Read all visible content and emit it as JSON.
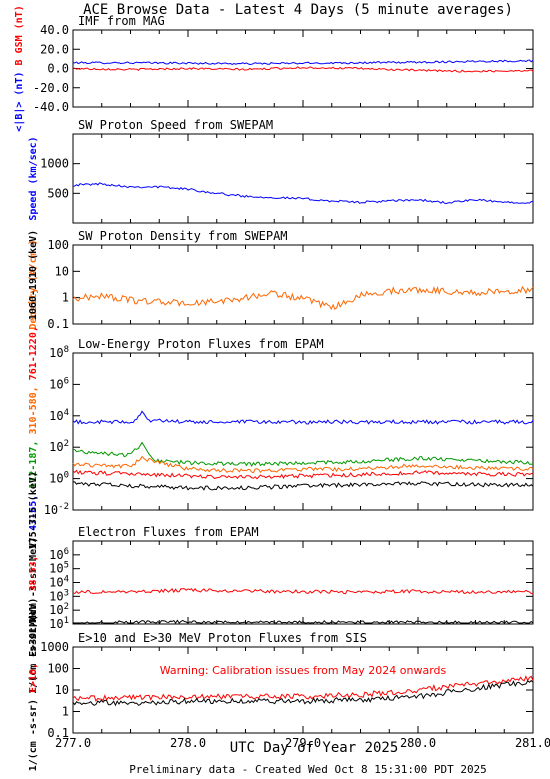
{
  "page": {
    "title": "ACE Browse Data - Latest 4 Days (5 minute averages)",
    "x_axis_label": "UTC Day of Year 2025",
    "footer": "Preliminary data - Created Wed Oct  8 15:31:00 PDT 2025",
    "x_ticks": [
      "277.0",
      "278.0",
      "279.0",
      "280.0",
      "281.0"
    ]
  },
  "colors": {
    "blue": "#0000ff",
    "red": "#ff0000",
    "orange": "#ff6600",
    "green": "#009900",
    "black": "#000000"
  },
  "chart_data": [
    {
      "type": "line",
      "title": "IMF from MAG",
      "ylabel_parts": [
        {
          "text": "<|B|> (nT)",
          "color": "#0000ff"
        },
        {
          "text": "B  GSM (nT)",
          "color": "#ff0000"
        }
      ],
      "ylabel_sub": "z",
      "xlim": [
        277.0,
        281.0
      ],
      "ylim": [
        -40,
        40
      ],
      "yscale": "linear",
      "yticks": [
        "40.0",
        "20.0",
        "0.0",
        "-20.0",
        "-40.0"
      ],
      "series": [
        {
          "name": "<|B|>",
          "color": "#0000ff",
          "x": [
            277.0,
            277.5,
            278.0,
            278.5,
            279.0,
            279.5,
            280.0,
            280.5,
            281.0
          ],
          "y": [
            6,
            6,
            5.5,
            5,
            5.5,
            6,
            6.5,
            7.5,
            8
          ]
        },
        {
          "name": "Bz GSM",
          "color": "#ff0000",
          "x": [
            277.0,
            277.5,
            278.0,
            278.5,
            279.0,
            279.5,
            280.0,
            280.5,
            281.0
          ],
          "y": [
            0,
            -1,
            0,
            -1,
            1,
            0,
            -2,
            -3,
            -2
          ]
        }
      ]
    },
    {
      "type": "line",
      "title": "SW Proton Speed from SWEPAM",
      "ylabel_parts": [
        {
          "text": "Speed (km/sec)",
          "color": "#0000ff"
        }
      ],
      "xlim": [
        277.0,
        281.0
      ],
      "ylim": [
        0,
        1500
      ],
      "yscale": "linear",
      "yticks": [
        "1000",
        "500"
      ],
      "series": [
        {
          "name": "Speed",
          "color": "#0000ff",
          "x": [
            277.0,
            277.25,
            277.5,
            277.75,
            278.0,
            278.25,
            278.5,
            278.75,
            279.0,
            279.25,
            279.5,
            279.75,
            280.0,
            280.25,
            280.5,
            280.75,
            281.0
          ],
          "y": [
            640,
            660,
            610,
            610,
            570,
            500,
            450,
            430,
            410,
            370,
            350,
            370,
            390,
            340,
            390,
            350,
            350
          ]
        }
      ]
    },
    {
      "type": "line",
      "title": "SW Proton Density from SWEPAM",
      "ylabel_parts": [
        {
          "text": "Density (#/cm )",
          "color": "#ff6600"
        }
      ],
      "ylabel_sup": "3",
      "xlim": [
        277.0,
        281.0
      ],
      "ylim": [
        0.1,
        100
      ],
      "yscale": "log",
      "yticks": [
        "100",
        "10",
        "1",
        "0.1"
      ],
      "series": [
        {
          "name": "Density",
          "color": "#ff6600",
          "x": [
            277.0,
            277.25,
            277.5,
            277.75,
            278.0,
            278.25,
            278.5,
            278.75,
            279.0,
            279.25,
            279.5,
            279.75,
            280.0,
            280.25,
            280.5,
            280.75,
            281.0
          ],
          "y": [
            0.9,
            1.2,
            0.8,
            0.7,
            0.6,
            0.7,
            1.0,
            1.5,
            0.9,
            0.4,
            1.2,
            1.8,
            2.0,
            1.8,
            1.5,
            1.8,
            2.0
          ]
        }
      ]
    },
    {
      "type": "line",
      "title": "Low-Energy Proton Fluxes from EPAM",
      "ylabel_parts": [
        {
          "text": "1/(cm -s-sr-MeV)",
          "color": "#000000"
        },
        {
          "text": "47-65,",
          "color": "#0000ff"
        },
        {
          "text": "112-187,",
          "color": "#009900"
        },
        {
          "text": "310-580,",
          "color": "#ff6600"
        },
        {
          "text": "761-1220,",
          "color": "#ff0000"
        },
        {
          "text": "1060-1910 (keV)",
          "color": "#000000"
        }
      ],
      "ylabel_sup": "2",
      "xlim": [
        277.0,
        281.0
      ],
      "ylim": [
        0.01,
        100000000
      ],
      "yscale": "log",
      "yticks": [
        "10^8",
        "10^6",
        "10^4",
        "10^2",
        "10^0",
        "10^-2"
      ],
      "series": [
        {
          "name": "47-65 keV",
          "color": "#0000ff",
          "x": [
            277.0,
            277.5,
            277.55,
            277.6,
            277.65,
            278.0,
            279.0,
            280.0,
            281.0
          ],
          "y": [
            4000,
            4000,
            5000,
            25000,
            5000,
            4000,
            4000,
            4000,
            4000
          ]
        },
        {
          "name": "112-187 keV",
          "color": "#009900",
          "x": [
            277.0,
            277.3,
            277.5,
            277.6,
            277.7,
            278.0,
            278.5,
            279.0,
            279.5,
            280.0,
            280.5,
            281.0
          ],
          "y": [
            60,
            40,
            30,
            200,
            15,
            10,
            8,
            10,
            12,
            20,
            15,
            10
          ]
        },
        {
          "name": "310-580 keV",
          "color": "#ff6600",
          "x": [
            277.0,
            277.5,
            277.6,
            278.0,
            278.5,
            279.0,
            279.5,
            280.0,
            280.5,
            281.0
          ],
          "y": [
            8,
            6,
            20,
            4,
            3,
            4,
            4,
            7,
            5,
            4
          ]
        },
        {
          "name": "761-1220 keV",
          "color": "#ff0000",
          "x": [
            277.0,
            277.5,
            278.0,
            278.5,
            279.0,
            279.5,
            280.0,
            280.5,
            281.0
          ],
          "y": [
            2.5,
            2,
            1.5,
            1.2,
            1.5,
            1.8,
            2.5,
            2,
            1.8
          ]
        },
        {
          "name": "1060-1910 keV",
          "color": "#000000",
          "x": [
            277.0,
            277.5,
            278.0,
            278.5,
            279.0,
            279.5,
            280.0,
            280.5,
            281.0
          ],
          "y": [
            0.5,
            0.35,
            0.25,
            0.25,
            0.35,
            0.4,
            0.5,
            0.4,
            0.4
          ]
        }
      ]
    },
    {
      "type": "line",
      "title": "Electron Fluxes from EPAM",
      "ylabel_parts": [
        {
          "text": "1/(cm -s-sr-MeV)",
          "color": "#000000"
        },
        {
          "text": "38-53,",
          "color": "#ff0000"
        },
        {
          "text": "175-315 (keV)",
          "color": "#000000"
        }
      ],
      "ylabel_sup": "2",
      "xlim": [
        277.0,
        281.0
      ],
      "ylim": [
        10,
        10000000
      ],
      "yscale": "log",
      "yticks": [
        "10^6",
        "10^5",
        "10^4",
        "10^3",
        "10^2",
        "10^1"
      ],
      "series": [
        {
          "name": "38-53 keV",
          "color": "#ff0000",
          "x": [
            277.0,
            277.5,
            278.0,
            278.5,
            279.0,
            279.5,
            280.0,
            280.5,
            281.0
          ],
          "y": [
            2000,
            2200,
            2800,
            2400,
            2200,
            2000,
            2300,
            2100,
            2000
          ]
        },
        {
          "name": "175-315 keV",
          "color": "#000000",
          "x": [
            277.0,
            277.5,
            278.0,
            278.5,
            279.0,
            279.5,
            280.0,
            280.5,
            281.0
          ],
          "y": [
            12,
            13,
            14,
            13,
            13,
            13,
            13,
            12,
            12
          ]
        }
      ]
    },
    {
      "type": "line",
      "title": "E>10 and E>30 MeV Proton Fluxes from SIS",
      "annotation": "Warning: Calibration issues from May 2024 onwards",
      "ylabel_parts": [
        {
          "text": "1/(cm -s-sr)",
          "color": "#000000"
        },
        {
          "text": "E>10,",
          "color": "#ff0000"
        },
        {
          "text": "E>30 MeV",
          "color": "#000000"
        }
      ],
      "ylabel_sup": "2",
      "xlim": [
        277.0,
        281.0
      ],
      "ylim": [
        0.1,
        1000
      ],
      "yscale": "log",
      "yticks": [
        "1000",
        "100",
        "10",
        "1",
        "0.1"
      ],
      "series": [
        {
          "name": "E>10 MeV",
          "color": "#ff0000",
          "x": [
            277.0,
            277.5,
            278.0,
            278.5,
            279.0,
            279.5,
            280.0,
            280.5,
            281.0
          ],
          "y": [
            4,
            4.5,
            5,
            5,
            5,
            6,
            10,
            20,
            35
          ]
        },
        {
          "name": "E>30 MeV",
          "color": "#000000",
          "x": [
            277.0,
            277.5,
            278.0,
            278.5,
            279.0,
            279.5,
            280.0,
            280.5,
            281.0
          ],
          "y": [
            2.5,
            2.5,
            3,
            3,
            3,
            3.5,
            5,
            12,
            25
          ]
        }
      ]
    }
  ]
}
